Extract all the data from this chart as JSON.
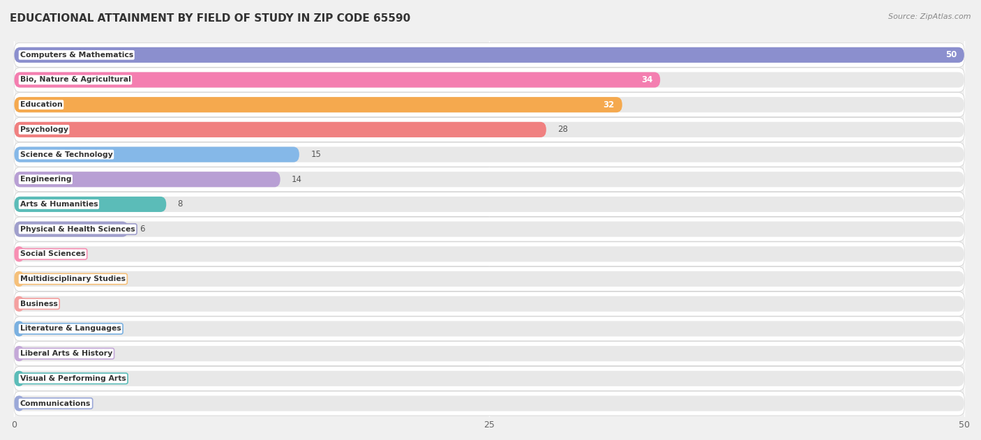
{
  "title": "EDUCATIONAL ATTAINMENT BY FIELD OF STUDY IN ZIP CODE 65590",
  "source": "Source: ZipAtlas.com",
  "categories": [
    "Computers & Mathematics",
    "Bio, Nature & Agricultural",
    "Education",
    "Psychology",
    "Science & Technology",
    "Engineering",
    "Arts & Humanities",
    "Physical & Health Sciences",
    "Social Sciences",
    "Multidisciplinary Studies",
    "Business",
    "Literature & Languages",
    "Liberal Arts & History",
    "Visual & Performing Arts",
    "Communications"
  ],
  "values": [
    50,
    34,
    32,
    28,
    15,
    14,
    8,
    6,
    0,
    0,
    0,
    0,
    0,
    0,
    0
  ],
  "bar_colors": [
    "#8b8fce",
    "#f47eb0",
    "#f5a94e",
    "#f08080",
    "#85b8e8",
    "#b89fd4",
    "#5bbcb8",
    "#a09fcc",
    "#f78fb3",
    "#f5c07a",
    "#f4a0a0",
    "#7ab0e0",
    "#c4a8d8",
    "#5bbcb8",
    "#9ba8d8"
  ],
  "xlim": [
    0,
    50
  ],
  "xticks": [
    0,
    25,
    50
  ],
  "background_color": "#f0f0f0",
  "row_bg_color": "#ffffff",
  "bar_bg_color": "#e8e8e8",
  "title_fontsize": 11,
  "bar_height": 0.62,
  "value_label_inside_threshold": 29,
  "value_label_outside_threshold": 20
}
